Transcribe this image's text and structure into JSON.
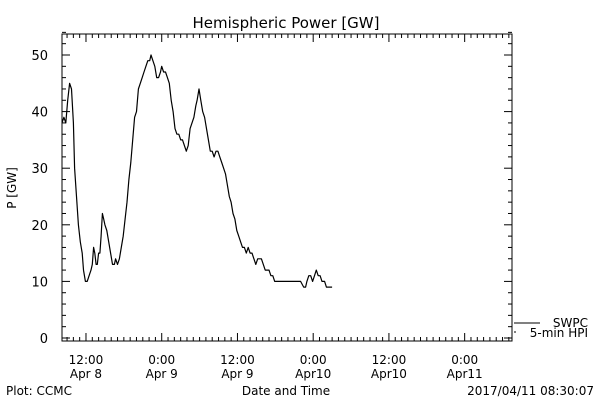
{
  "chart_data": {
    "type": "line",
    "title": "Hemispheric Power [GW]",
    "xlabel": "Date and Time",
    "ylabel": "P [GW]",
    "ylim": [
      0,
      55
    ],
    "yticks": [
      0,
      10,
      20,
      30,
      40,
      50
    ],
    "x_unit": "hours since 2017-04-08 00:00 UT",
    "xlim": [
      8.2,
      79.5
    ],
    "xticks": [
      {
        "x": 12,
        "time": "12:00",
        "date": "Apr 8"
      },
      {
        "x": 24,
        "time": "0:00",
        "date": "Apr 9"
      },
      {
        "x": 36,
        "time": "12:00",
        "date": "Apr 9"
      },
      {
        "x": 48,
        "time": "0:00",
        "date": "Apr10"
      },
      {
        "x": 60,
        "time": "12:00",
        "date": "Apr10"
      },
      {
        "x": 72,
        "time": "0:00",
        "date": "Apr11"
      }
    ],
    "legend": [
      {
        "label": "SWPC",
        "color": "#000000"
      },
      {
        "label": "5-min HPI",
        "color": "#000000"
      }
    ],
    "legend_position": "lower-right outside",
    "series": [
      {
        "name": "5-min HPI",
        "color": "#000000",
        "points": [
          [
            8.2,
            38
          ],
          [
            8.5,
            39
          ],
          [
            8.8,
            38
          ],
          [
            9.1,
            42
          ],
          [
            9.4,
            45
          ],
          [
            9.7,
            44
          ],
          [
            10.0,
            38
          ],
          [
            10.2,
            30
          ],
          [
            10.5,
            25
          ],
          [
            10.8,
            20
          ],
          [
            11.1,
            17
          ],
          [
            11.4,
            15
          ],
          [
            11.6,
            12
          ],
          [
            11.9,
            10
          ],
          [
            12.2,
            10
          ],
          [
            12.5,
            11
          ],
          [
            12.8,
            12
          ],
          [
            13.0,
            13
          ],
          [
            13.2,
            16
          ],
          [
            13.4,
            15
          ],
          [
            13.6,
            13
          ],
          [
            13.8,
            13
          ],
          [
            14.0,
            15
          ],
          [
            14.2,
            15
          ],
          [
            14.4,
            18
          ],
          [
            14.6,
            22
          ],
          [
            14.8,
            21
          ],
          [
            15.0,
            20
          ],
          [
            15.3,
            19
          ],
          [
            15.6,
            17
          ],
          [
            15.9,
            15
          ],
          [
            16.2,
            13
          ],
          [
            16.5,
            13
          ],
          [
            16.7,
            14
          ],
          [
            17.0,
            13
          ],
          [
            17.3,
            14
          ],
          [
            17.6,
            16
          ],
          [
            17.9,
            18
          ],
          [
            18.2,
            21
          ],
          [
            18.5,
            24
          ],
          [
            18.8,
            28
          ],
          [
            19.1,
            31
          ],
          [
            19.4,
            35
          ],
          [
            19.7,
            39
          ],
          [
            20.0,
            40
          ],
          [
            20.3,
            44
          ],
          [
            20.6,
            45
          ],
          [
            20.9,
            46
          ],
          [
            21.2,
            47
          ],
          [
            21.5,
            48
          ],
          [
            21.8,
            49
          ],
          [
            22.1,
            49
          ],
          [
            22.3,
            50
          ],
          [
            22.6,
            49
          ],
          [
            22.9,
            48
          ],
          [
            23.2,
            46
          ],
          [
            23.5,
            46
          ],
          [
            23.8,
            47
          ],
          [
            24.0,
            48
          ],
          [
            24.3,
            47
          ],
          [
            24.6,
            47
          ],
          [
            24.9,
            46
          ],
          [
            25.2,
            45
          ],
          [
            25.5,
            42
          ],
          [
            25.8,
            40
          ],
          [
            26.1,
            37
          ],
          [
            26.4,
            36
          ],
          [
            26.7,
            36
          ],
          [
            27.0,
            35
          ],
          [
            27.3,
            35
          ],
          [
            27.6,
            34
          ],
          [
            27.9,
            33
          ],
          [
            28.2,
            34
          ],
          [
            28.5,
            37
          ],
          [
            28.8,
            38
          ],
          [
            29.1,
            39
          ],
          [
            29.4,
            41
          ],
          [
            29.6,
            42
          ],
          [
            29.9,
            44
          ],
          [
            30.2,
            42
          ],
          [
            30.5,
            40
          ],
          [
            30.8,
            39
          ],
          [
            31.1,
            37
          ],
          [
            31.4,
            35
          ],
          [
            31.7,
            33
          ],
          [
            32.0,
            33
          ],
          [
            32.3,
            32
          ],
          [
            32.6,
            33
          ],
          [
            32.9,
            33
          ],
          [
            33.2,
            32
          ],
          [
            33.5,
            31
          ],
          [
            33.8,
            30
          ],
          [
            34.1,
            29
          ],
          [
            34.4,
            27
          ],
          [
            34.7,
            25
          ],
          [
            35.0,
            24
          ],
          [
            35.3,
            22
          ],
          [
            35.6,
            21
          ],
          [
            35.9,
            19
          ],
          [
            36.2,
            18
          ],
          [
            36.5,
            17
          ],
          [
            36.8,
            16
          ],
          [
            37.1,
            16
          ],
          [
            37.4,
            15
          ],
          [
            37.7,
            16
          ],
          [
            38.0,
            15
          ],
          [
            38.3,
            15
          ],
          [
            38.6,
            14
          ],
          [
            38.9,
            13
          ],
          [
            39.2,
            14
          ],
          [
            39.5,
            14
          ],
          [
            39.8,
            14
          ],
          [
            40.1,
            13
          ],
          [
            40.4,
            12
          ],
          [
            40.7,
            12
          ],
          [
            41.0,
            12
          ],
          [
            41.3,
            11
          ],
          [
            41.6,
            11
          ],
          [
            41.9,
            10
          ],
          [
            43.0,
            10
          ],
          [
            44.0,
            10
          ],
          [
            45.0,
            10
          ],
          [
            46.0,
            10
          ],
          [
            46.5,
            9
          ],
          [
            46.8,
            9
          ],
          [
            47.0,
            10
          ],
          [
            47.3,
            11
          ],
          [
            47.6,
            11
          ],
          [
            47.9,
            10
          ],
          [
            48.2,
            11
          ],
          [
            48.5,
            12
          ],
          [
            48.8,
            11
          ],
          [
            49.1,
            11
          ],
          [
            49.4,
            10
          ],
          [
            49.8,
            10
          ],
          [
            50.1,
            9
          ],
          [
            50.5,
            9
          ],
          [
            51.0,
            9
          ]
        ]
      }
    ]
  },
  "footer": {
    "left": "Plot: CCMC",
    "right": "2017/04/11 08:30:07"
  }
}
